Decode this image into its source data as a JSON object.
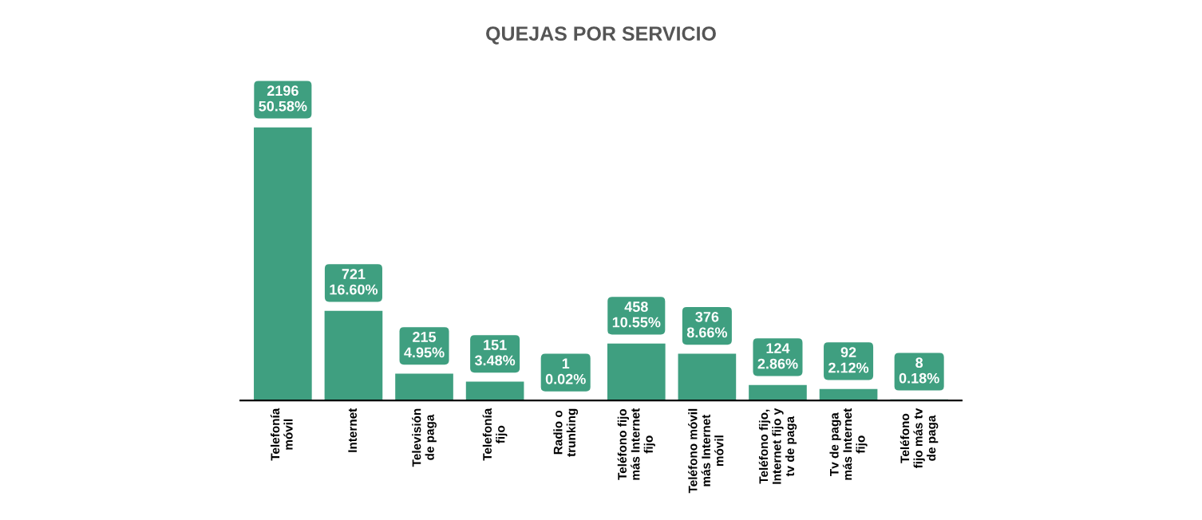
{
  "chart_data": {
    "type": "bar",
    "title": "QUEJAS POR SERVICIO",
    "categories": [
      "Telefonía\nmóvil",
      "Internet",
      "Televisión\nde paga",
      "Telefonía\nfijo",
      "Radio o\ntrunking",
      "Teléfono fijo\nmás Internet\nfijo",
      "Teléfono móvil\nmás Internet\nmóvil",
      "Teléfono fijo,\nInternet fijo y\ntv de paga",
      "Tv de paga\nmás Internet\nfijo",
      "Teléfono\nfijo más tv\nde paga"
    ],
    "values": [
      2196,
      721,
      215,
      151,
      1,
      458,
      376,
      124,
      92,
      8
    ],
    "value_labels": [
      "2196\n50.58%",
      "721\n16.60%",
      "215\n4.95%",
      "151\n3.48%",
      "1\n0.02%",
      "458\n10.55%",
      "376\n8.66%",
      "124\n2.86%",
      "92\n2.12%",
      "8\n0.18%"
    ],
    "color": "#3f9f80",
    "tick_labels": "x",
    "grid": false,
    "legend": false
  }
}
